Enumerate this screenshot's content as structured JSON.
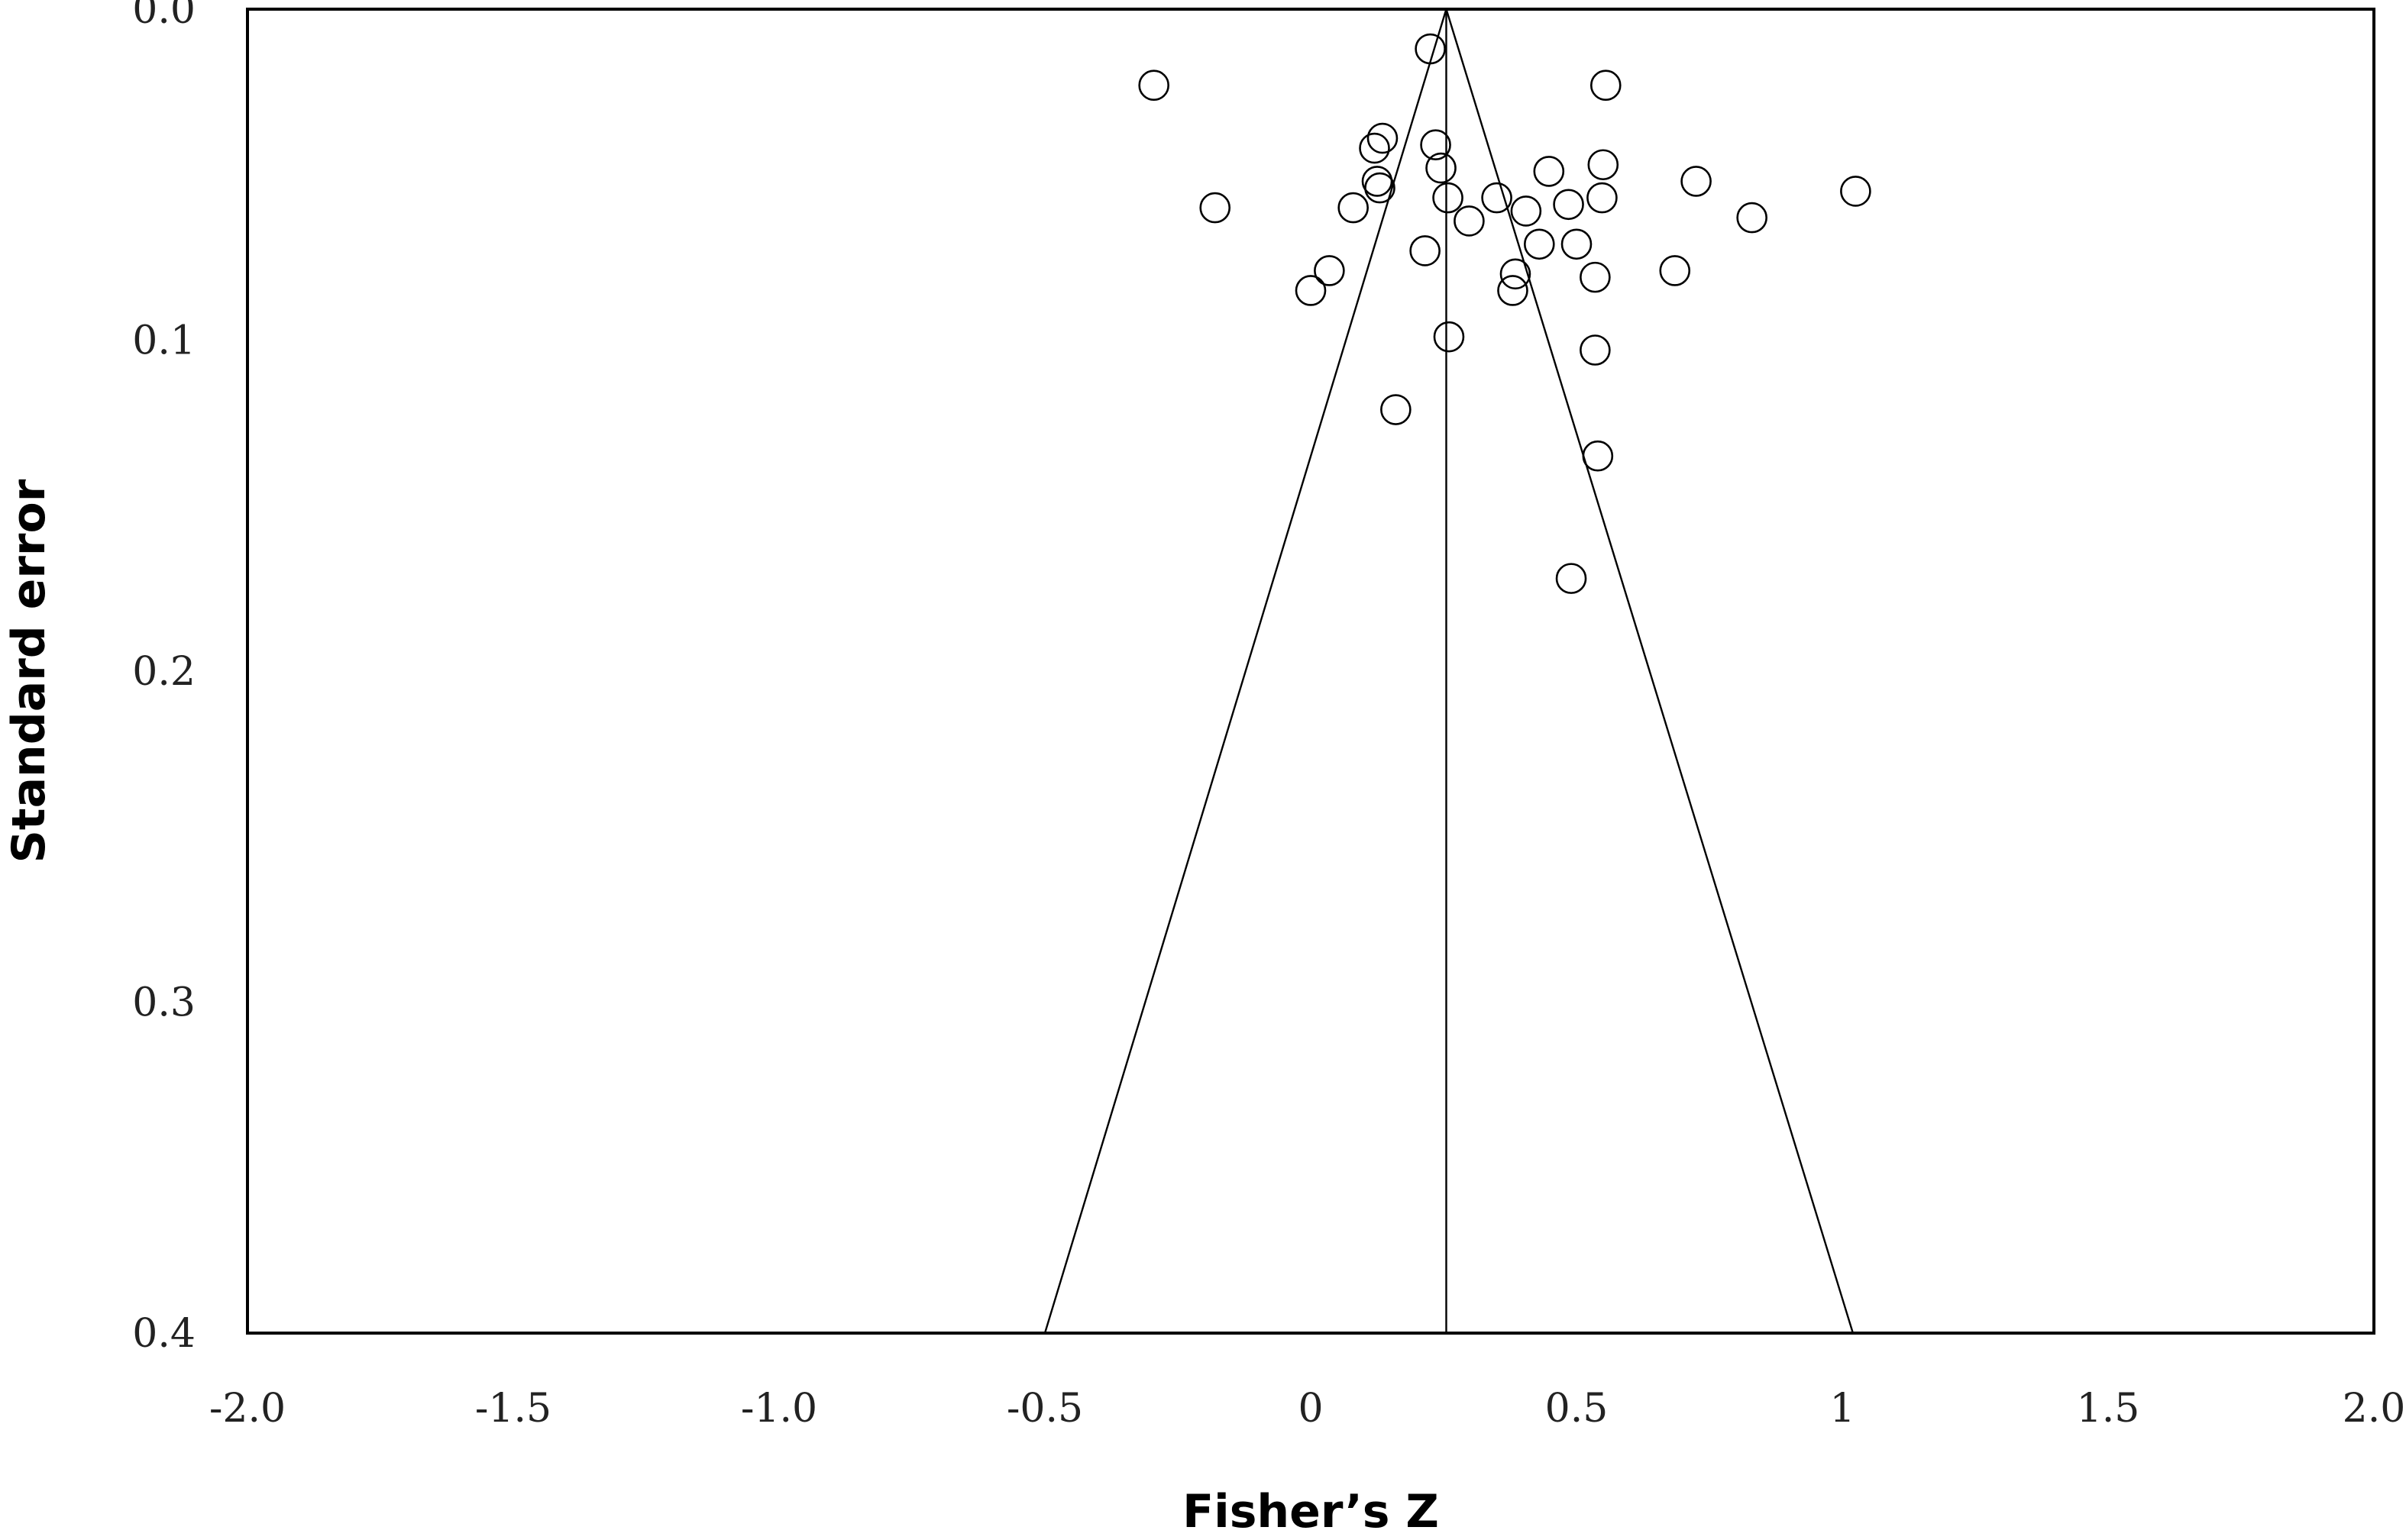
{
  "chart_data": {
    "type": "scatter",
    "subtype": "funnel-plot",
    "title": "",
    "xlabel": "Fisher’s Z",
    "ylabel": "Standard error",
    "xlim": [
      -2.0,
      2.0
    ],
    "ylim": [
      0.0,
      0.4
    ],
    "y_inverted": true,
    "x_ticks": [
      -2.0,
      -1.5,
      -1.0,
      -0.5,
      0,
      0.5,
      1,
      1.5,
      2.0
    ],
    "x_tick_labels": [
      "-2.0",
      "-1.5",
      "-1.0",
      "-0.5",
      "0",
      "0.5",
      "1",
      "1.5",
      "2.0"
    ],
    "y_ticks": [
      0.0,
      0.1,
      0.2,
      0.3,
      0.4
    ],
    "y_tick_labels": [
      "0.0",
      "0.1",
      "0.2",
      "0.3",
      "0.4"
    ],
    "grid": false,
    "legend": "none",
    "summary_effect": 0.255,
    "funnel_bounds": [
      {
        "side": "left",
        "x_at_top": 0.255,
        "x_at_bottom": -0.5
      },
      {
        "side": "right",
        "x_at_top": 0.255,
        "x_at_bottom": 1.02
      }
    ],
    "marker": "open-circle",
    "points": [
      {
        "x": 0.225,
        "y": 0.012
      },
      {
        "x": -0.295,
        "y": 0.023
      },
      {
        "x": 0.555,
        "y": 0.023
      },
      {
        "x": 0.135,
        "y": 0.039
      },
      {
        "x": 0.12,
        "y": 0.042
      },
      {
        "x": 0.235,
        "y": 0.041
      },
      {
        "x": 0.245,
        "y": 0.048
      },
      {
        "x": 0.55,
        "y": 0.047
      },
      {
        "x": 0.448,
        "y": 0.049
      },
      {
        "x": 0.725,
        "y": 0.052
      },
      {
        "x": 0.125,
        "y": 0.052
      },
      {
        "x": 0.13,
        "y": 0.054
      },
      {
        "x": 1.025,
        "y": 0.055
      },
      {
        "x": 0.258,
        "y": 0.057
      },
      {
        "x": 0.35,
        "y": 0.057
      },
      {
        "x": 0.548,
        "y": 0.057
      },
      {
        "x": 0.485,
        "y": 0.059
      },
      {
        "x": -0.18,
        "y": 0.06
      },
      {
        "x": 0.08,
        "y": 0.06
      },
      {
        "x": 0.405,
        "y": 0.061
      },
      {
        "x": 0.83,
        "y": 0.063
      },
      {
        "x": 0.298,
        "y": 0.064
      },
      {
        "x": 0.43,
        "y": 0.071
      },
      {
        "x": 0.5,
        "y": 0.071
      },
      {
        "x": 0.215,
        "y": 0.073
      },
      {
        "x": 0.035,
        "y": 0.079
      },
      {
        "x": 0.685,
        "y": 0.079
      },
      {
        "x": 0.385,
        "y": 0.08
      },
      {
        "x": 0.535,
        "y": 0.081
      },
      {
        "x": 0.38,
        "y": 0.085
      },
      {
        "x": 0.0,
        "y": 0.085
      },
      {
        "x": 0.26,
        "y": 0.099
      },
      {
        "x": 0.535,
        "y": 0.103
      },
      {
        "x": 0.16,
        "y": 0.121
      },
      {
        "x": 0.54,
        "y": 0.135
      },
      {
        "x": 0.49,
        "y": 0.172
      }
    ]
  }
}
